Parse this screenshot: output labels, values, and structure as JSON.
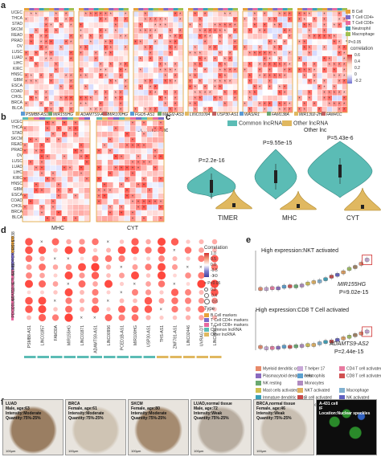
{
  "panels": {
    "a": {
      "letter": "a",
      "rows": [
        "UCEC",
        "THCA",
        "STAD",
        "SKCM",
        "READ",
        "PRAD",
        "OV",
        "LUSC",
        "LUAD",
        "LIHC",
        "KIRC",
        "HNSC",
        "GBM",
        "ESCA",
        "COAD",
        "CHOL",
        "BRCA",
        "BLCA"
      ],
      "genes": [
        "PSMB8-AS1",
        "MIR155HG",
        "ADAMTS9-AS2",
        "MIR100HG",
        "FGD5-AS1",
        "MAGI2-AS3",
        "LINC01094",
        "USP30-AS1",
        "WASIR1",
        "FAM138A",
        "MIR1302-2HG",
        "FAM41C"
      ],
      "group_common": "Common lnc",
      "group_other": "Other lnc",
      "legend_types": [
        "B Cell",
        "T Cell CD4+",
        "T Cell CD8+",
        "Neutrophil",
        "Macrophage"
      ],
      "legend_colors": [
        "#e8a13a",
        "#7b6cc7",
        "#e86aa0",
        "#3aa0b8",
        "#a0c050"
      ],
      "pvalue": "P<0.05",
      "corr_title": "correlation",
      "corr_ticks": [
        "0.6",
        "0.4",
        "0.2",
        "0",
        "-0.2"
      ]
    },
    "b": {
      "letter": "b",
      "rows": [
        "UCEC",
        "THCA",
        "STAD",
        "SKCM",
        "READ",
        "PRAD",
        "OV",
        "LUSC",
        "LUAD",
        "LIHC",
        "KIRC",
        "HNSC",
        "GBM",
        "ESCA",
        "COAD",
        "CHOL",
        "BRCA",
        "BLCA"
      ],
      "groups": [
        "MHC",
        "CYT"
      ]
    },
    "c": {
      "letter": "c",
      "legend": [
        "Common lncRNA",
        "Other lncRNA"
      ],
      "colors": [
        "#5bbcb5",
        "#e0b860"
      ],
      "categories": [
        "TIMER",
        "MHC",
        "CYT"
      ],
      "pvalues": [
        "P=2.2e-16",
        "P=9.55e-15",
        "P=5.43e-6"
      ]
    },
    "d": {
      "letter": "d",
      "rows": [
        "CD38",
        "CCL5",
        "CXCR3",
        "CD4",
        "GZMB",
        "CTLA4",
        "CD3E",
        "STAT1",
        "CTLA4b",
        "PDCD1"
      ],
      "cols": [
        "PSMB8-AS1",
        "LINC01857",
        "FAM30A",
        "MIR155HG",
        "LINC01871",
        "ADAMTS9-AS1",
        "LINC00996",
        "PCED1B-AS1",
        "MIR100HG",
        "USP30-AS1",
        "THS-AS1",
        "ZNF781-AS1",
        "LINC02446",
        "UVRAG-DT",
        "LINC02512"
      ],
      "legend_corr_title": "Correlation",
      "legend_corr_ticks": [
        "1.0",
        "0.5",
        "0.0",
        "-0.5",
        "-1.0"
      ],
      "pvalue": "P<0.05",
      "size_ticks": [
        "0.2",
        "0.4",
        "0.6"
      ],
      "type_title": "Type",
      "types": [
        "B Cell markers",
        "T Cell CD4+ markers",
        "T Cell CD8+ markers",
        "Common lncRNA",
        "Other lncRNA"
      ],
      "type_colors": [
        "#e8a13a",
        "#7b6cc7",
        "#e86aa0",
        "#5bbcb5",
        "#e0b860"
      ]
    },
    "e": {
      "letter": "e",
      "top_title": "High expression:NKT activated",
      "top_gene": "MIR155HG",
      "top_p": "P=9.02e-15",
      "bottom_title": "High expression:CD8 T Cell activated",
      "bottom_gene": "ADAMTS9-AS2",
      "bottom_p": "P=2.44e-15",
      "legend": [
        "Myeloid dendritic cells",
        "T helper 17",
        "CD4 T cell activated",
        "Plasmacytoid dendritic cells",
        "Neutrophils",
        "CD8 T cell activated",
        "NK resting",
        "Monocytes",
        "",
        "Mast cells activated",
        "NKT activated",
        "Macrophage",
        "Immature dendritic cells",
        "B cell activated",
        "NK activated",
        "Dendritic cells resting",
        "Eosinophils",
        "",
        "T gamma delta",
        "",
        ""
      ],
      "legend_colors": [
        "#e88a6a",
        "#c8a8d8",
        "#e87aa0",
        "#8a6ac0",
        "#5aa0d0",
        "#d05050",
        "#6aa870",
        "#b08ac0",
        "#ffffff",
        "#d0c050",
        "#e0b060",
        "#80b0d0",
        "#3aa0b8",
        "#c84848",
        "#6060c0",
        "#e0a060",
        "#a0c060",
        "#ffffff",
        "#a08060",
        "#ffffff",
        "#ffffff"
      ]
    },
    "f": {
      "letter": "f",
      "images": [
        {
          "caption": "LUAD\nMale, age:63\nIntensity:Moderate\nQuantity:75%-25%",
          "scale": "100μm",
          "tone": "#9a7e62"
        },
        {
          "caption": "BRCA\nFemale, age:61\nIntensity:Moderate\nQuantity:75%-25%",
          "scale": "100μm",
          "tone": "#cfc4b4"
        },
        {
          "caption": "SKCM\nFemale, age:80\nIntensity:Moderate\nQuantity:75%-25%",
          "scale": "100μm",
          "tone": "#a58b70"
        },
        {
          "caption": "LUAD,normal tissue\nMale, age:72\nIntensity:Weak\nQuantity:75%-25%",
          "scale": "100μm",
          "tone": "#b8ada0"
        },
        {
          "caption": "BRCA,normal tissue\nFemale, age:46\nIntensity:Weak\nQuantity:75%-25%",
          "scale": "100μm",
          "tone": "#c9bfb2"
        },
        {
          "caption": "A-431 cell\nIF\nLocation:Nuclear speckles",
          "scale": "",
          "tone": "#1a1a1a"
        }
      ]
    }
  }
}
